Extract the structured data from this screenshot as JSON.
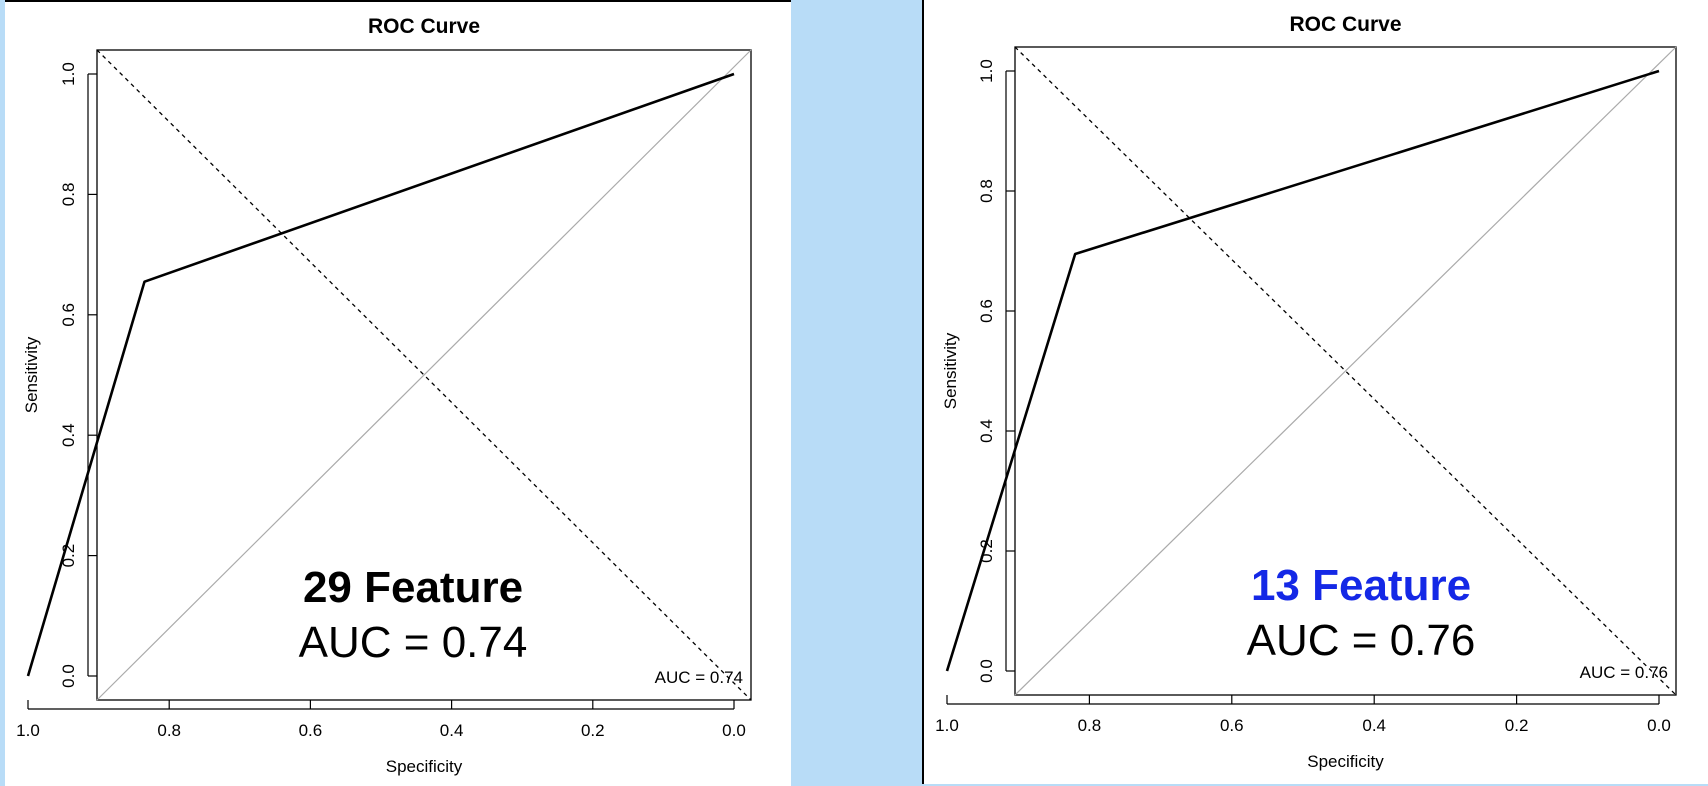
{
  "colors": {
    "background": "#b8dcf7",
    "panel": "#ffffff",
    "curve": "#000000",
    "reference_line": "#aaaaaa",
    "feature_left": "#000000",
    "feature_right": "#1428e6"
  },
  "chart_data": [
    {
      "type": "line",
      "title": "ROC Curve",
      "xlabel": "Specificity",
      "ylabel": "Sensitivity",
      "xlim": [
        1.0,
        0.0
      ],
      "ylim": [
        0.0,
        1.0
      ],
      "x_reversed": true,
      "grid": false,
      "x_ticks": [
        "1.0",
        "0.8",
        "0.6",
        "0.4",
        "0.2",
        "0.0"
      ],
      "y_ticks": [
        "0.0",
        "0.2",
        "0.4",
        "0.6",
        "0.8",
        "1.0"
      ],
      "series": [
        {
          "x": [
            1.0,
            0.835,
            0.0
          ],
          "y": [
            0.0,
            0.655,
            1.0
          ]
        }
      ],
      "auc_label": "AUC = 0.74",
      "overlay_feature": "29 Feature",
      "overlay_auc": "AUC = 0.74"
    },
    {
      "type": "line",
      "title": "ROC Curve",
      "xlabel": "Specificity",
      "ylabel": "Sensitivity",
      "xlim": [
        1.0,
        0.0
      ],
      "ylim": [
        0.0,
        1.0
      ],
      "x_reversed": true,
      "grid": false,
      "x_ticks": [
        "1.0",
        "0.8",
        "0.6",
        "0.4",
        "0.2",
        "0.0"
      ],
      "y_ticks": [
        "0.0",
        "0.2",
        "0.4",
        "0.6",
        "0.8",
        "1.0"
      ],
      "series": [
        {
          "x": [
            1.0,
            0.82,
            0.0
          ],
          "y": [
            0.0,
            0.695,
            1.0
          ]
        }
      ],
      "auc_label": "AUC = 0.76",
      "overlay_feature": "13 Feature",
      "overlay_auc": "AUC = 0.76"
    }
  ]
}
